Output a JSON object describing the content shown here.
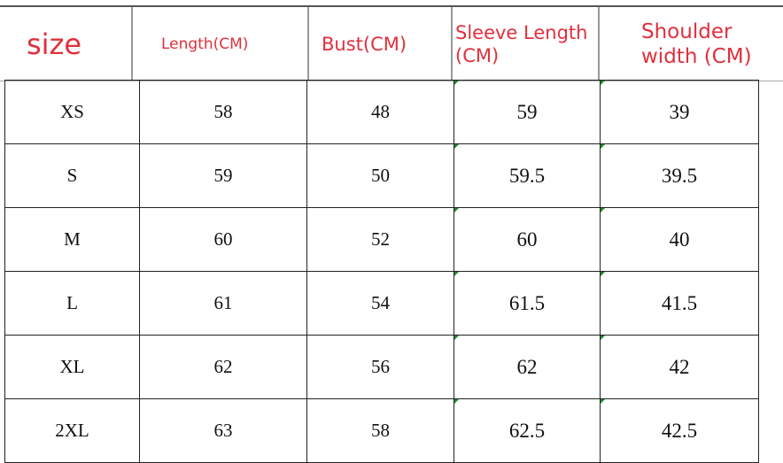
{
  "headers": [
    "size",
    "Length(CM)",
    "Bust(CM)",
    "Sleeve Length (CM)",
    "Shoulder width (CM)"
  ],
  "rows": [
    {
      "size": "XS",
      "length": "58",
      "bust": "48",
      "sleeve": "59",
      "shoulder": "39"
    },
    {
      "size": "S",
      "length": "59",
      "bust": "50",
      "sleeve": "59.5",
      "shoulder": "39.5"
    },
    {
      "size": "M",
      "length": "60",
      "bust": "52",
      "sleeve": "60",
      "shoulder": "40"
    },
    {
      "size": "L",
      "length": "61",
      "bust": "54",
      "sleeve": "61.5",
      "shoulder": "41.5"
    },
    {
      "size": "XL",
      "length": "62",
      "bust": "56",
      "sleeve": "62",
      "shoulder": "42"
    },
    {
      "size": "2XL",
      "length": "63",
      "bust": "58",
      "sleeve": "62.5",
      "shoulder": "42.5"
    }
  ],
  "colors": {
    "header_text": "#e0303c",
    "cell_marker": "#1a8a2a"
  }
}
